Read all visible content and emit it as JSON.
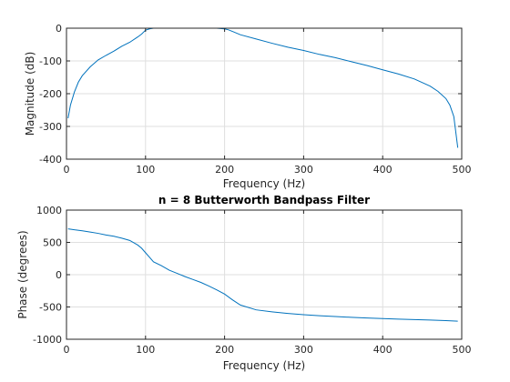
{
  "chart_data": [
    {
      "type": "line",
      "title": "",
      "xlabel": "Frequency (Hz)",
      "ylabel": "Magnitude (dB)",
      "xlim": [
        0,
        500
      ],
      "ylim": [
        -400,
        0
      ],
      "xticks": [
        0,
        100,
        200,
        300,
        400,
        500
      ],
      "yticks": [
        0,
        -100,
        -200,
        -300,
        -400
      ],
      "grid": true,
      "color": "#0072bd",
      "series": [
        {
          "x": [
            2,
            5,
            10,
            15,
            20,
            30,
            40,
            50,
            60,
            70,
            80,
            90,
            95,
            100,
            105,
            110,
            120,
            130,
            150,
            170,
            190,
            200,
            205,
            210,
            220,
            240,
            260,
            280,
            300,
            320,
            340,
            360,
            380,
            400,
            420,
            440,
            460,
            470,
            480,
            485,
            490,
            495
          ],
          "y": [
            -275,
            -235,
            -195,
            -165,
            -145,
            -118,
            -97,
            -83,
            -70,
            -55,
            -43,
            -27,
            -18,
            -6,
            -2,
            0,
            0,
            0,
            0,
            0,
            0,
            -2,
            -5,
            -10,
            -20,
            -33,
            -46,
            -58,
            -68,
            -80,
            -90,
            -102,
            -114,
            -127,
            -140,
            -155,
            -177,
            -193,
            -215,
            -235,
            -270,
            -365
          ]
        }
      ]
    },
    {
      "type": "line",
      "title": "n = 8 Butterworth Bandpass Filter",
      "xlabel": "Frequency (Hz)",
      "ylabel": "Phase (degrees)",
      "xlim": [
        0,
        500
      ],
      "ylim": [
        -1000,
        1000
      ],
      "xticks": [
        0,
        100,
        200,
        300,
        400,
        500
      ],
      "yticks": [
        1000,
        500,
        0,
        -500,
        -1000
      ],
      "grid": true,
      "color": "#0072bd",
      "series": [
        {
          "x": [
            2,
            10,
            20,
            30,
            40,
            50,
            60,
            70,
            80,
            90,
            95,
            100,
            105,
            110,
            120,
            130,
            140,
            150,
            160,
            170,
            180,
            190,
            200,
            210,
            220,
            240,
            260,
            280,
            300,
            320,
            340,
            360,
            380,
            400,
            420,
            440,
            460,
            480,
            495
          ],
          "y": [
            710,
            695,
            680,
            660,
            640,
            615,
            595,
            565,
            530,
            460,
            410,
            340,
            270,
            200,
            140,
            70,
            20,
            -30,
            -75,
            -120,
            -175,
            -235,
            -300,
            -390,
            -470,
            -545,
            -575,
            -600,
            -620,
            -635,
            -648,
            -660,
            -670,
            -680,
            -688,
            -695,
            -703,
            -712,
            -720
          ]
        }
      ]
    }
  ]
}
